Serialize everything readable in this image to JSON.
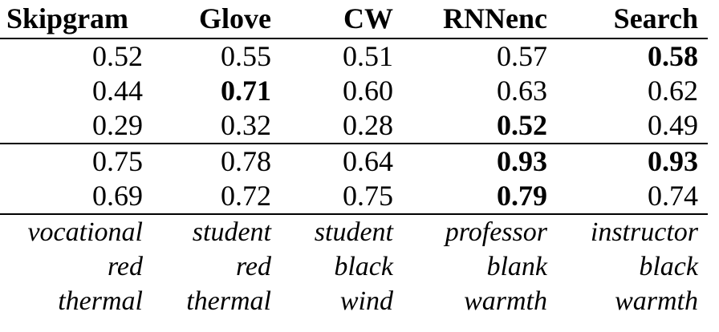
{
  "header": {
    "columns": [
      "Skipgram",
      "Glove",
      "CW",
      "RNNenc",
      "Search"
    ]
  },
  "group1": [
    {
      "cells": [
        {
          "value": "0.52",
          "bold": false
        },
        {
          "value": "0.55",
          "bold": false
        },
        {
          "value": "0.51",
          "bold": false
        },
        {
          "value": "0.57",
          "bold": false
        },
        {
          "value": "0.58",
          "bold": true
        }
      ]
    },
    {
      "cells": [
        {
          "value": "0.44",
          "bold": false
        },
        {
          "value": "0.71",
          "bold": true
        },
        {
          "value": "0.60",
          "bold": false
        },
        {
          "value": "0.63",
          "bold": false
        },
        {
          "value": "0.62",
          "bold": false
        }
      ]
    },
    {
      "cells": [
        {
          "value": "0.29",
          "bold": false
        },
        {
          "value": "0.32",
          "bold": false
        },
        {
          "value": "0.28",
          "bold": false
        },
        {
          "value": "0.52",
          "bold": true
        },
        {
          "value": "0.49",
          "bold": false
        }
      ]
    }
  ],
  "group2": [
    {
      "cells": [
        {
          "value": "0.75",
          "bold": false
        },
        {
          "value": "0.78",
          "bold": false
        },
        {
          "value": "0.64",
          "bold": false
        },
        {
          "value": "0.93",
          "bold": true
        },
        {
          "value": "0.93",
          "bold": true
        }
      ]
    },
    {
      "cells": [
        {
          "value": "0.69",
          "bold": false
        },
        {
          "value": "0.72",
          "bold": false
        },
        {
          "value": "0.75",
          "bold": false
        },
        {
          "value": "0.79",
          "bold": true
        },
        {
          "value": "0.74",
          "bold": false
        }
      ]
    }
  ],
  "words": [
    [
      "vocational",
      "student",
      "student",
      "professor",
      "instructor"
    ],
    [
      "red",
      "red",
      "black",
      "blank",
      "black"
    ],
    [
      "thermal",
      "thermal",
      "wind",
      "warmth",
      "warmth"
    ]
  ]
}
